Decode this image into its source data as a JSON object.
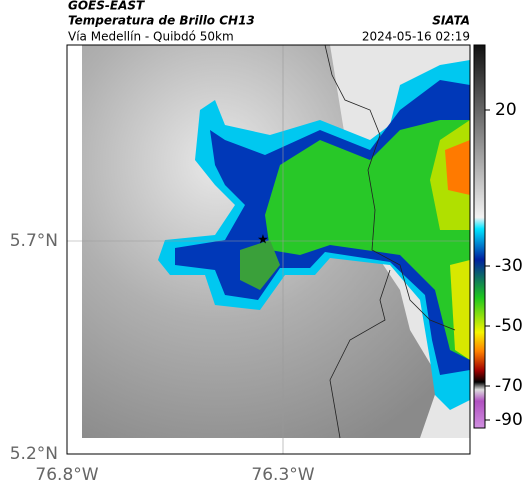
{
  "header": {
    "source": "GOES-EAST",
    "title": "Temperatura de Brillo CH13",
    "subtitle": "Vía Medellín - Quibdó 50km",
    "agency": "SIATA",
    "timestamp": "2024-05-16 02:19"
  },
  "map": {
    "lat_labels": [
      "5.7°N",
      "5.2°N"
    ],
    "lon_labels": [
      "76.8°W",
      "76.3°W"
    ]
  },
  "colorbar": {
    "ticks": [
      20,
      -30,
      -50,
      -70,
      -90
    ]
  }
}
